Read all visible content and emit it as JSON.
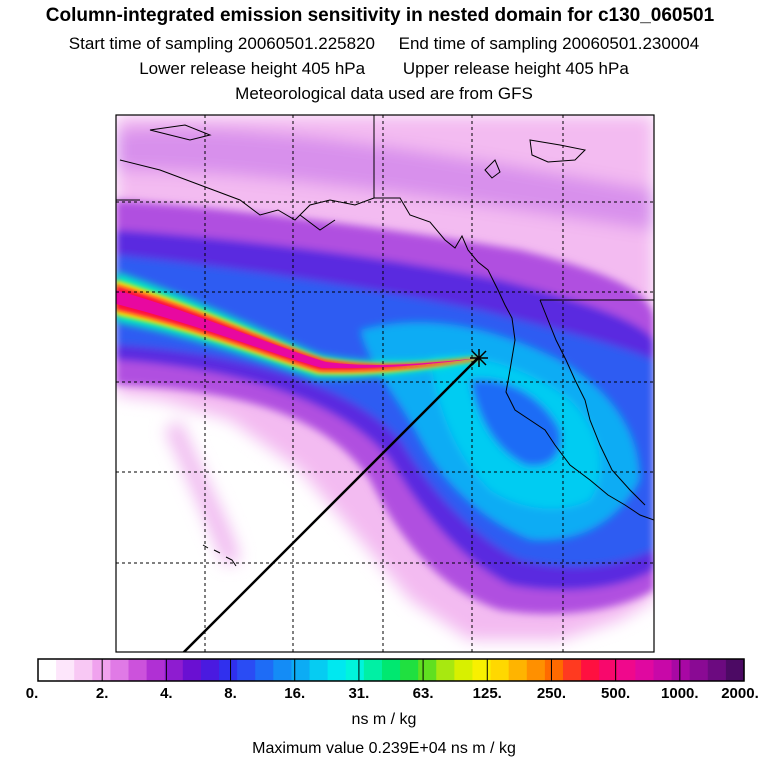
{
  "header": {
    "title": "Column-integrated emission sensitivity in nested domain for c130_060501",
    "start_label": "Start time of sampling 20060501.225820",
    "end_label": "End time of sampling 20060501.230004",
    "lower_label": "Lower release height  405 hPa",
    "upper_label": "Upper release height  405 hPa",
    "met_label": "Meteorological data used are from GFS"
  },
  "chart_data": {
    "type": "heatmap",
    "colorbar": {
      "tick_labels": [
        "0.",
        "2.",
        "4.",
        "8.",
        "16.",
        "31.",
        "63.",
        "125.",
        "250.",
        "500.",
        "1000.",
        "2000."
      ],
      "colors": [
        "#ffffff",
        "#fde6fb",
        "#f8c8f4",
        "#f0a2ee",
        "#e07ae6",
        "#cc52dc",
        "#b030d4",
        "#8e1cd0",
        "#6a10d2",
        "#4a1ae0",
        "#3030ee",
        "#2a4cf4",
        "#1e6cf6",
        "#148cf6",
        "#0cacf4",
        "#06ccf2",
        "#00e8f0",
        "#00f4dc",
        "#00f0a4",
        "#00e870",
        "#20e040",
        "#60e020",
        "#a8e810",
        "#d8f000",
        "#f8f000",
        "#ffd800",
        "#ffb400",
        "#ff9000",
        "#ff6a00",
        "#ff3a20",
        "#ff1040",
        "#f8086c",
        "#f0088c",
        "#e008a0",
        "#c808a8",
        "#a808a4",
        "#8a0a94",
        "#6c0a80",
        "#4c0a64"
      ],
      "units": "ns m / kg"
    },
    "max_value_label": "Maximum value  0.239E+04 ns m / kg",
    "release_point": "c130 sampling location (star)"
  }
}
